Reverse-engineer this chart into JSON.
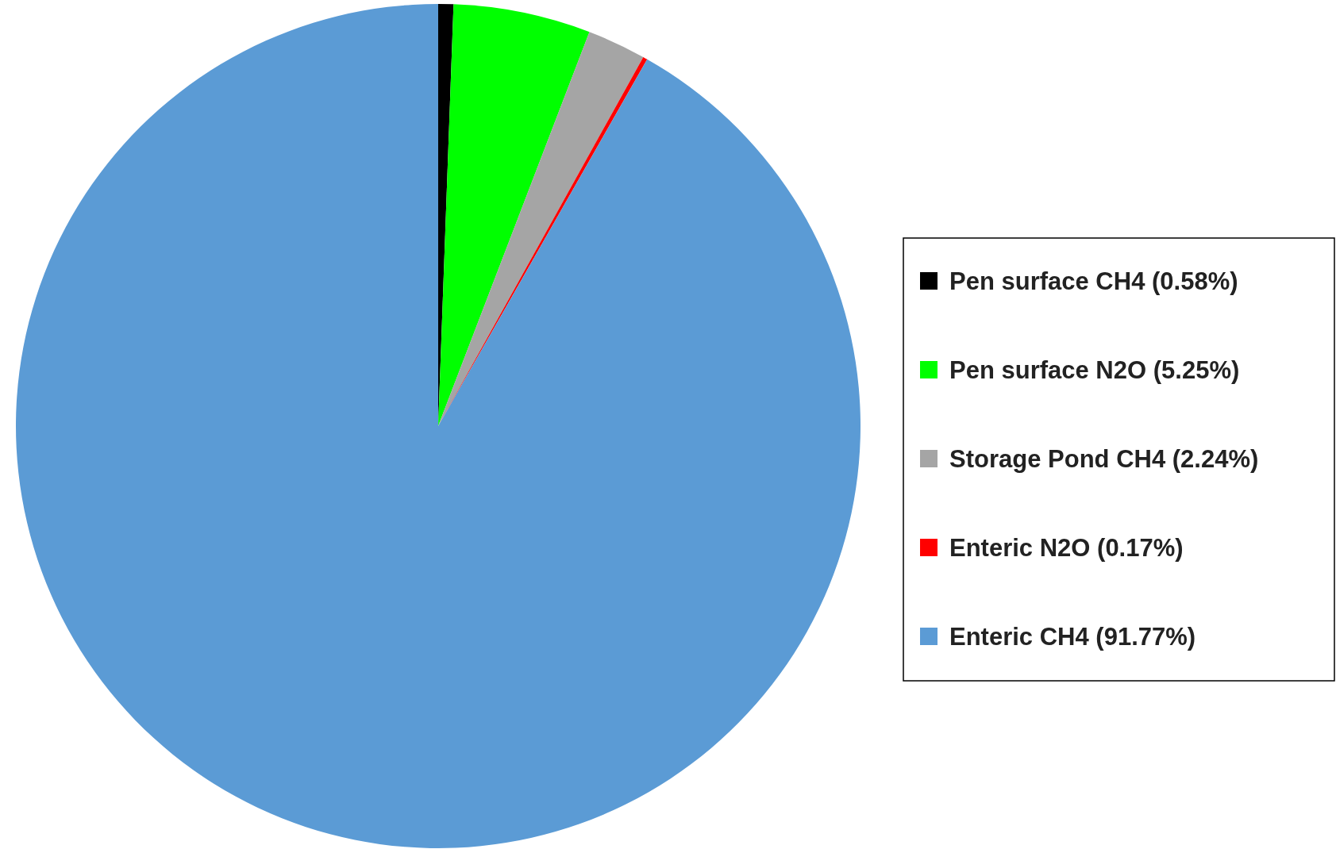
{
  "chart_data": {
    "type": "pie",
    "categories": [
      "Pen surface CH4 (0.58%)",
      "Pen surface N2O (5.25%)",
      "Storage Pond CH4 (2.24%)",
      "Enteric N2O (0.17%)",
      "Enteric CH4 (91.77%)"
    ],
    "values": [
      0.58,
      5.25,
      2.24,
      0.17,
      91.77
    ],
    "colors": [
      "#000000",
      "#00ff00",
      "#a5a5a5",
      "#ff0000",
      "#5b9bd5"
    ],
    "legend": "right"
  }
}
